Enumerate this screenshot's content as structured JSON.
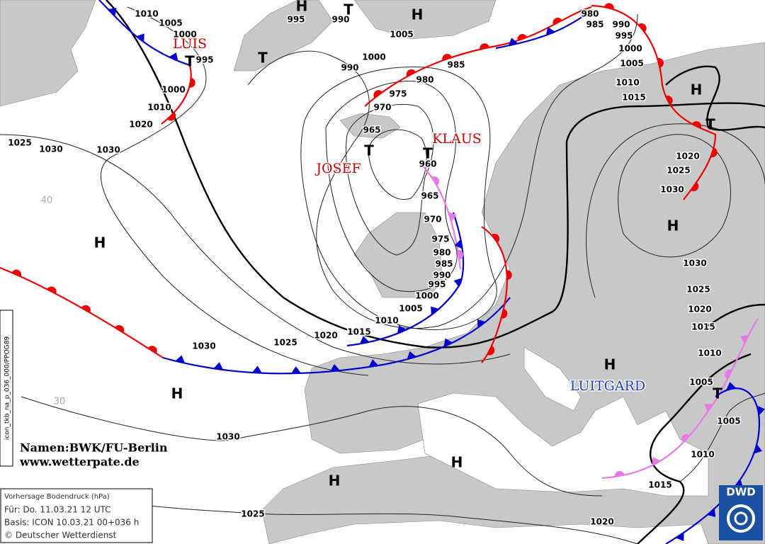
{
  "low_names": [
    "LUIS",
    "JOSEF",
    "KLAUS",
    "LUITGARD"
  ],
  "centers": [
    "H",
    "T",
    "H",
    "T",
    "T",
    "H",
    "T",
    "T",
    "T",
    "H",
    "H",
    "H",
    "H",
    "T",
    "H",
    "H"
  ],
  "isobar_labels": [
    "1010",
    "1005",
    "1000",
    "995",
    "1000",
    "1010",
    "1020",
    "1025",
    "1030",
    "1030",
    "995",
    "990",
    "1005",
    "1000",
    "990",
    "985",
    "980",
    "975",
    "970",
    "965",
    "960",
    "965",
    "970",
    "975",
    "980",
    "985",
    "990",
    "995",
    "1000",
    "1005",
    "1010",
    "1015",
    "1020",
    "1025",
    "1030",
    "1030",
    "1025",
    "1020",
    "1015",
    "1010",
    "1005",
    "1005",
    "1010",
    "1015",
    "1020",
    "1025",
    "1030",
    "1030",
    "1025",
    "1020",
    "1015",
    "1010",
    "1005",
    "1000",
    "995",
    "990",
    "985",
    "980"
  ],
  "latitude_labels": [
    "40",
    "30"
  ],
  "credits": [
    "Namen:BWK/FU-Berlin",
    "www.wetterpate.de"
  ],
  "info_box": [
    "Vorhersage Bodendruck (hPa)",
    "Für:  Do. 11.03.21  12 UTC",
    "Basis: ICON  10.03.21 00+036 h",
    "© Deutscher Wetterdienst"
  ],
  "product_code": "icon_tkb_na_p_036_000/PPOG89",
  "logo": "DWD"
}
